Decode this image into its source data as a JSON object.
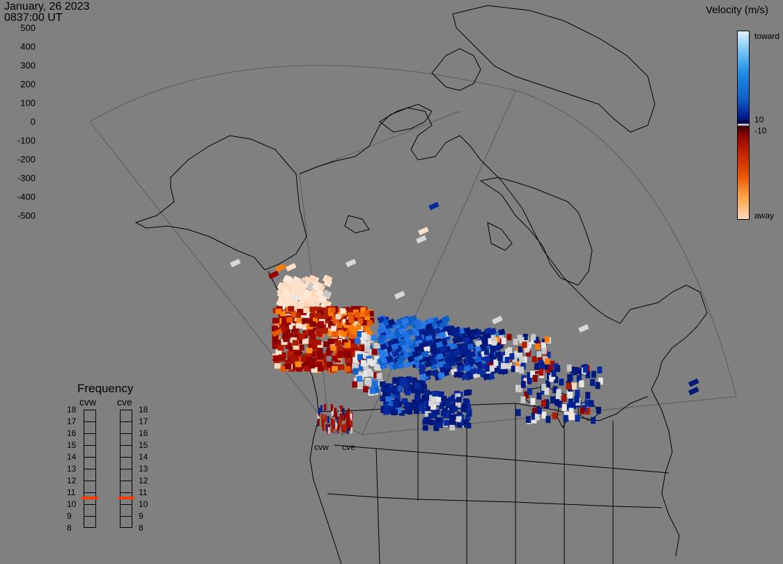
{
  "header": {
    "date": "January, 26 2023",
    "time": "0837:00 UT"
  },
  "velocity_legend": {
    "title": "Velocity (m/s)",
    "ticks": [
      "500",
      "400",
      "300",
      "200",
      "100",
      "0",
      "-100",
      "-200",
      "-300",
      "-400",
      "-500"
    ],
    "threshold_pos": "10",
    "threshold_neg": "-10",
    "toward_label": "toward",
    "away_label": "away"
  },
  "frequency": {
    "title": "Frequency",
    "radars": [
      {
        "name": "cvw",
        "value_mhz": 10.5
      },
      {
        "name": "cve",
        "value_mhz": 10.5
      }
    ],
    "scale": [
      "18",
      "17",
      "16",
      "15",
      "14",
      "13",
      "12",
      "11",
      "10",
      "9",
      "8"
    ]
  },
  "radar_sites": [
    {
      "label": "cvw",
      "color": "#808080"
    },
    {
      "label": "cve",
      "color": "#808080"
    }
  ],
  "colors": {
    "background": "#808080",
    "coastline": "#000000",
    "fov_boundary": "#5a5a5a",
    "frequency_marker": "#ff3a00"
  }
}
